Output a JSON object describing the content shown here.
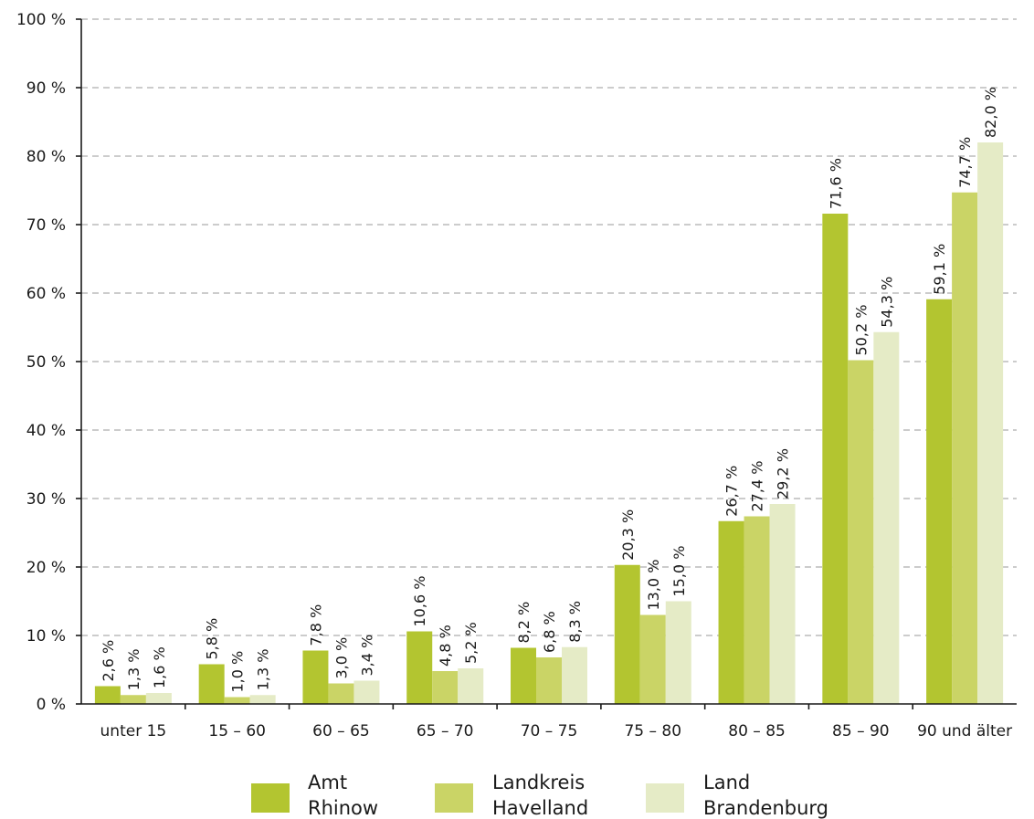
{
  "chart_data": {
    "type": "bar",
    "categories": [
      "unter 15",
      "15 – 60",
      "60 – 65",
      "65 – 70",
      "70 – 75",
      "75 – 80",
      "80 – 85",
      "85 – 90",
      "90 und älter"
    ],
    "series": [
      {
        "name": "Amt Rhinow",
        "color": "#b3c530",
        "values": [
          2.6,
          5.8,
          7.8,
          10.6,
          8.2,
          20.3,
          26.7,
          71.6,
          59.1
        ],
        "labels": [
          "2,6 %",
          "5,8 %",
          "7,8 %",
          "10,6 %",
          "8,2 %",
          "20,3 %",
          "26,7 %",
          "71,6 %",
          "59,1 %"
        ]
      },
      {
        "name": "Landkreis Havelland",
        "color": "#cad466",
        "values": [
          1.3,
          1.0,
          3.0,
          4.8,
          6.8,
          13.0,
          27.4,
          50.2,
          74.7
        ],
        "labels": [
          "1,3 %",
          "1,0 %",
          "3,0 %",
          "4,8 %",
          "6,8 %",
          "13,0 %",
          "27,4 %",
          "50,2 %",
          "74,7 %"
        ]
      },
      {
        "name": "Land Brandenburg",
        "color": "#e5ebc6",
        "values": [
          1.6,
          1.3,
          3.4,
          5.2,
          8.3,
          15.0,
          29.2,
          54.3,
          82.0
        ],
        "labels": [
          "1,6 %",
          "1,3 %",
          "3,4 %",
          "5,2 %",
          "8,3 %",
          "15,0 %",
          "29,2 %",
          "54,3 %",
          "82,0 %"
        ]
      }
    ],
    "yticks": [
      0,
      10,
      20,
      30,
      40,
      50,
      60,
      70,
      80,
      90,
      100
    ],
    "ytick_labels": [
      "0 %",
      "10 %",
      "20 %",
      "30 %",
      "40 %",
      "50 %",
      "60 %",
      "70 %",
      "80 %",
      "90 %",
      "100 %"
    ],
    "ylim": [
      0,
      100
    ],
    "grid": "horizontal-dashed",
    "legend_position": "bottom",
    "legend": [
      {
        "line1": "Amt",
        "line2": "Rhinow"
      },
      {
        "line1": "Landkreis",
        "line2": "Havelland"
      },
      {
        "line1": "Land",
        "line2": "Brandenburg"
      }
    ]
  }
}
